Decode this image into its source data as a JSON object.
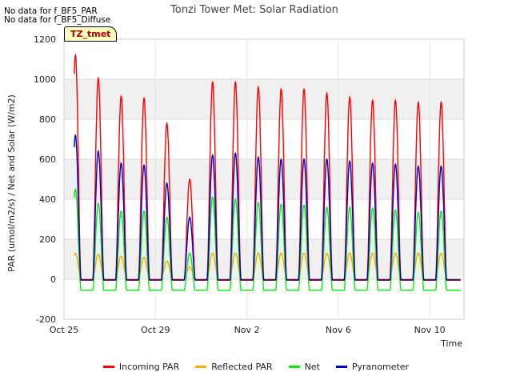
{
  "notes": [
    "No data for f_BF5_PAR",
    "No data for f_BF5_Diffuse"
  ],
  "badge": "TZ_tmet",
  "chart_data": {
    "type": "line",
    "title": "Tonzi Tower Met: Solar Radiation",
    "xlabel": "Time",
    "ylabel": "PAR (umol/m2/s) / Net and Solar (W/m2)",
    "ylim": [
      -200,
      1200
    ],
    "xlim": [
      0,
      17.5
    ],
    "x_unit": "days since Oct 25",
    "yticks": [
      -200,
      0,
      200,
      400,
      600,
      800,
      1000,
      1200
    ],
    "xticks": [
      {
        "label": "Oct 25",
        "value": 0
      },
      {
        "label": "Oct 29",
        "value": 4
      },
      {
        "label": "Nov 2",
        "value": 8
      },
      {
        "label": "Nov 6",
        "value": 12
      },
      {
        "label": "Nov 10",
        "value": 16
      }
    ],
    "grid": true,
    "legend_position": "bottom",
    "days": [
      0.5,
      1.5,
      2.5,
      3.5,
      4.5,
      5.5,
      6.5,
      7.5,
      8.5,
      9.5,
      10.5,
      11.5,
      12.5,
      13.5,
      14.5,
      15.5,
      16.5
    ],
    "series": [
      {
        "name": "Incoming PAR",
        "color": "#ff0000",
        "baseline": -5,
        "peaks": [
          1120,
          1005,
          915,
          905,
          780,
          500,
          985,
          985,
          960,
          950,
          950,
          930,
          910,
          895,
          895,
          885,
          885
        ]
      },
      {
        "name": "Reflected PAR",
        "color": "#ffa500",
        "baseline": 0,
        "peaks": [
          130,
          125,
          115,
          110,
          90,
          60,
          130,
          130,
          130,
          130,
          130,
          130,
          130,
          130,
          130,
          130,
          130
        ]
      },
      {
        "name": "Net",
        "color": "#00ee00",
        "baseline": -55,
        "peaks": [
          450,
          380,
          340,
          340,
          310,
          130,
          410,
          400,
          385,
          375,
          370,
          360,
          360,
          355,
          345,
          335,
          340
        ]
      },
      {
        "name": "Pyranometer",
        "color": "#0000cc",
        "baseline": -3,
        "peaks": [
          720,
          640,
          580,
          570,
          480,
          310,
          620,
          630,
          610,
          600,
          600,
          600,
          590,
          580,
          575,
          565,
          565
        ]
      }
    ]
  }
}
